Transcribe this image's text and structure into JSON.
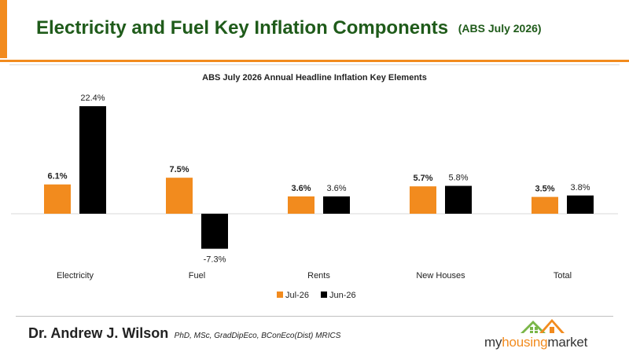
{
  "header": {
    "title": "Electricity and Fuel Key Inflation Components",
    "subtitle": "(ABS July 2026)"
  },
  "chart_data": {
    "type": "bar",
    "title": "ABS July 2026 Annual Headline Inflation Key Elements",
    "categories": [
      "Electricity",
      "Fuel",
      "Rents",
      "New Houses",
      "Total"
    ],
    "series": [
      {
        "name": "Jul-26",
        "color": "#f28b1e",
        "values": [
          6.1,
          7.5,
          3.6,
          5.7,
          3.5
        ],
        "labels": [
          "6.1%",
          "7.5%",
          "3.6%",
          "5.7%",
          "3.5%"
        ]
      },
      {
        "name": "Jun-26",
        "color": "#000000",
        "values": [
          22.4,
          -7.3,
          3.6,
          5.8,
          3.8
        ],
        "labels": [
          "22.4%",
          "-7.3%",
          "3.6%",
          "5.8%",
          "3.8%"
        ]
      }
    ],
    "ylim": [
      -10,
      25
    ],
    "grid": false,
    "legend_position": "bottom"
  },
  "footer": {
    "author_name": "Dr. Andrew J. Wilson",
    "author_credentials": "PhD, MSc, GradDipEco, BConEco(Dist) MRICS"
  },
  "logo": {
    "part1": "my",
    "part2": "housing",
    "part3": "market",
    "icon": "house-roof-icon"
  }
}
